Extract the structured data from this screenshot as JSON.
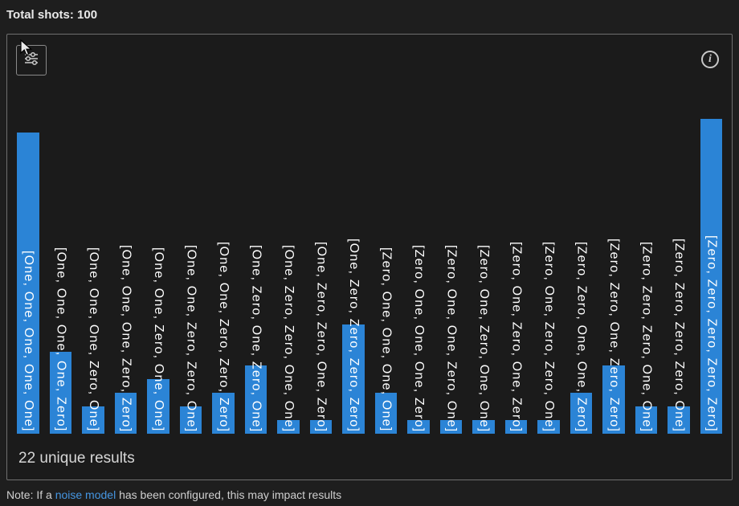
{
  "header": {
    "total_shots": "Total shots: 100"
  },
  "panel": {
    "unique_results": "22 unique results"
  },
  "icons": {
    "settings": "histogram-settings-sliders-icon",
    "info": "info-icon",
    "cursor": "mouse-cursor-arrow"
  },
  "note": {
    "prefix": "Note: If a ",
    "link": "noise model",
    "suffix": " has been configured, this may impact results"
  },
  "colors": {
    "bar": "#2b84d6",
    "bar_label": "#ffffff",
    "link": "#4596e2",
    "background": "#1e1e1e",
    "panel_border": "#6f6f6f"
  },
  "chart_data": {
    "type": "bar",
    "orientation": "vertical",
    "title": "Total shots: 100",
    "total_shots": 100,
    "unique_results": 22,
    "ymax": 23,
    "grid": false,
    "legend": false,
    "categories": [
      "[One, One, One, One, One]",
      "[One, One, One, One, Zero]",
      "[One, One, One, Zero, One]",
      "[One, One, One, Zero, Zero]",
      "[One, One, Zero, One, One]",
      "[One, One, Zero, Zero, One]",
      "[One, One, Zero, Zero, Zero]",
      "[One, Zero, One, Zero, One]",
      "[One, Zero, Zero, One, One]",
      "[One, Zero, Zero, One, Zero]",
      "[One, Zero, Zero, Zero, Zero]",
      "[Zero, One, One, One, One]",
      "[Zero, One, One, One, Zero]",
      "[Zero, One, One, Zero, One]",
      "[Zero, One, Zero, One, One]",
      "[Zero, One, Zero, One, Zero]",
      "[Zero, One, Zero, Zero, One]",
      "[Zero, Zero, One, One, Zero]",
      "[Zero, Zero, One, Zero, Zero]",
      "[Zero, Zero, Zero, One, One]",
      "[Zero, Zero, Zero, Zero, One]",
      "[Zero, Zero, Zero, Zero, Zero]"
    ],
    "values": [
      22,
      6,
      2,
      3,
      4,
      2,
      3,
      5,
      1,
      1,
      8,
      3,
      1,
      1,
      1,
      1,
      1,
      3,
      5,
      2,
      2,
      23
    ]
  }
}
